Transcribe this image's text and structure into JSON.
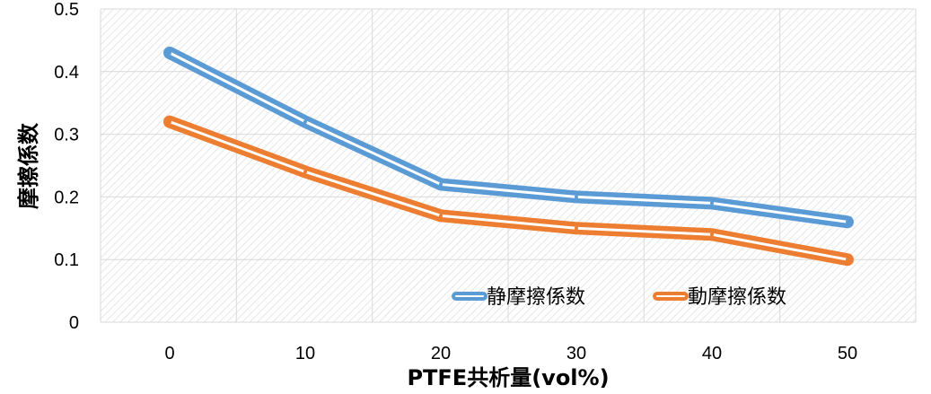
{
  "chart_data": {
    "type": "line",
    "xlabel": "PTFE共析量(vol%)",
    "ylabel": "摩擦係数",
    "x": [
      0,
      10,
      20,
      30,
      40,
      50
    ],
    "xticks": [
      "0",
      "10",
      "20",
      "30",
      "40",
      "50"
    ],
    "yticks": [
      "0",
      "0.1",
      "0.2",
      "0.3",
      "0.4",
      "0.5"
    ],
    "ylim": [
      0,
      0.5
    ],
    "grid": true,
    "legend": "bottom-right",
    "series": [
      {
        "name": "静摩擦係数",
        "color": "#5B9BD5",
        "values": [
          0.43,
          0.32,
          0.22,
          0.2,
          0.19,
          0.16
        ]
      },
      {
        "name": "動摩擦係数",
        "color": "#ED7D31",
        "values": [
          0.32,
          0.24,
          0.17,
          0.15,
          0.14,
          0.1
        ]
      }
    ]
  }
}
